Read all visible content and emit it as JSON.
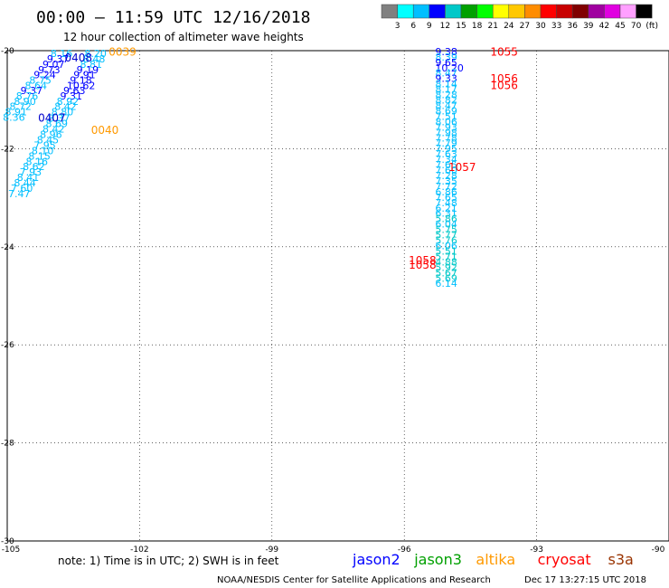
{
  "header": {
    "title": "00:00 – 11:59 UTC 12/16/2018",
    "subtitle": "12 hour collection of altimeter wave heights"
  },
  "legend": {
    "colors": [
      "#808080",
      "#00ffff",
      "#00bfff",
      "#0000ff",
      "#00c8c8",
      "#00a000",
      "#00ff00",
      "#ffff00",
      "#ffc800",
      "#ff8c00",
      "#ff0000",
      "#c80000",
      "#800000",
      "#a000a0",
      "#e000e0",
      "#ffa0ff",
      "#000000"
    ],
    "labels": [
      "3",
      "6",
      "9",
      "12",
      "15",
      "18",
      "21",
      "24",
      "27",
      "30",
      "33",
      "36",
      "39",
      "42",
      "45",
      "70",
      "(ft)"
    ]
  },
  "chart_data": {
    "type": "scatter",
    "xlabel": "",
    "ylabel": "",
    "xlim": [
      -105,
      -90
    ],
    "ylim": [
      -30,
      -20
    ],
    "x_ticks": [
      "-105",
      "-102",
      "-99",
      "-96",
      "-93",
      "-90"
    ],
    "y_ticks": [
      "-20",
      "-22",
      "-24",
      "-26",
      "-28",
      "-30"
    ],
    "grid": true,
    "series": [
      {
        "name": "jason2",
        "points": [
          {
            "x": -104.02,
            "y": -20.13,
            "v": "8.16",
            "c": "#00bfff"
          },
          {
            "x": -104.1,
            "y": -20.24,
            "v": "9.37",
            "c": "#0000ff"
          },
          {
            "x": -104.2,
            "y": -20.35,
            "v": "9.07",
            "c": "#0000ff"
          },
          {
            "x": -104.3,
            "y": -20.46,
            "v": "9.73",
            "c": "#0000ff"
          },
          {
            "x": -104.4,
            "y": -20.56,
            "v": "9.24",
            "c": "#0000ff"
          },
          {
            "x": -104.5,
            "y": -20.67,
            "v": "8.75",
            "c": "#00bfff"
          },
          {
            "x": -104.6,
            "y": -20.78,
            "v": "8.64",
            "c": "#00bfff"
          },
          {
            "x": -104.7,
            "y": -20.89,
            "v": "9.37",
            "c": "#0000ff"
          },
          {
            "x": -104.8,
            "y": -21.0,
            "v": "8.76",
            "c": "#00bfff"
          },
          {
            "x": -104.85,
            "y": -21.11,
            "v": "8.90",
            "c": "#00bfff"
          },
          {
            "x": -104.95,
            "y": -21.21,
            "v": "8.72",
            "c": "#00bfff"
          },
          {
            "x": -105.05,
            "y": -21.32,
            "v": "8.91",
            "c": "#00bfff"
          },
          {
            "x": -105.1,
            "y": -21.43,
            "v": "8.36",
            "c": "#00bfff"
          },
          {
            "x": -103.25,
            "y": -20.13,
            "v": "8.20",
            "c": "#00bfff"
          },
          {
            "x": -103.28,
            "y": -20.24,
            "v": "8.48",
            "c": "#00bfff"
          },
          {
            "x": -103.35,
            "y": -20.35,
            "v": "8.81",
            "c": "#00bfff"
          },
          {
            "x": -103.43,
            "y": -20.46,
            "v": "9.19",
            "c": "#0000ff"
          },
          {
            "x": -103.5,
            "y": -20.56,
            "v": "9.91",
            "c": "#0000ff"
          },
          {
            "x": -103.58,
            "y": -20.67,
            "v": "9.18",
            "c": "#0000ff"
          },
          {
            "x": -103.65,
            "y": -20.78,
            "v": "10.62",
            "c": "#0000ff"
          },
          {
            "x": -103.73,
            "y": -20.89,
            "v": "9.63",
            "c": "#0000ff"
          },
          {
            "x": -103.8,
            "y": -21.0,
            "v": "9.31",
            "c": "#0000ff"
          },
          {
            "x": -103.88,
            "y": -21.11,
            "v": "8.92",
            "c": "#00bfff"
          },
          {
            "x": -103.93,
            "y": -21.21,
            "v": "8.42",
            "c": "#00bfff"
          },
          {
            "x": -104.0,
            "y": -21.32,
            "v": "8.80",
            "c": "#00bfff"
          },
          {
            "x": -104.08,
            "y": -21.45,
            "v": "8.37",
            "c": "#00bfff"
          },
          {
            "x": -104.13,
            "y": -21.56,
            "v": "8.69",
            "c": "#00bfff"
          },
          {
            "x": -104.2,
            "y": -21.67,
            "v": "8.42",
            "c": "#00bfff"
          },
          {
            "x": -104.26,
            "y": -21.78,
            "v": "8.96",
            "c": "#00bfff"
          },
          {
            "x": -104.33,
            "y": -21.89,
            "v": "8.45",
            "c": "#00bfff"
          },
          {
            "x": -104.4,
            "y": -22.0,
            "v": "7.95",
            "c": "#00bfff"
          },
          {
            "x": -104.45,
            "y": -22.11,
            "v": "8.10",
            "c": "#00bfff"
          },
          {
            "x": -104.52,
            "y": -22.22,
            "v": "8.15",
            "c": "#00bfff"
          },
          {
            "x": -104.58,
            "y": -22.33,
            "v": "8.16",
            "c": "#00bfff"
          },
          {
            "x": -104.65,
            "y": -22.44,
            "v": "8.62",
            "c": "#00bfff"
          },
          {
            "x": -104.72,
            "y": -22.55,
            "v": "7.93",
            "c": "#00bfff"
          },
          {
            "x": -104.78,
            "y": -22.66,
            "v": "8.41",
            "c": "#00bfff"
          },
          {
            "x": -104.85,
            "y": -22.77,
            "v": "8.44",
            "c": "#00bfff"
          },
          {
            "x": -104.92,
            "y": -22.88,
            "v": "7.60",
            "c": "#00bfff"
          },
          {
            "x": -104.98,
            "y": -22.99,
            "v": "7.47",
            "c": "#00bfff"
          },
          {
            "x": -95.3,
            "y": -20.09,
            "v": "9.38",
            "c": "#0000ff"
          },
          {
            "x": -95.3,
            "y": -20.2,
            "v": "8.39",
            "c": "#00bfff"
          },
          {
            "x": -95.3,
            "y": -20.31,
            "v": "9.65",
            "c": "#0000ff"
          },
          {
            "x": -95.3,
            "y": -20.42,
            "v": "10.20",
            "c": "#0000ff"
          },
          {
            "x": -95.3,
            "y": -20.53,
            "v": "8.47",
            "c": "#00bfff"
          },
          {
            "x": -95.3,
            "y": -20.64,
            "v": "9.33",
            "c": "#0000ff"
          },
          {
            "x": -95.3,
            "y": -20.75,
            "v": "8.14",
            "c": "#00bfff"
          },
          {
            "x": -95.3,
            "y": -20.86,
            "v": "8.17",
            "c": "#00bfff"
          },
          {
            "x": -95.3,
            "y": -20.97,
            "v": "8.28",
            "c": "#00bfff"
          },
          {
            "x": -95.3,
            "y": -21.08,
            "v": "8.82",
            "c": "#00bfff"
          },
          {
            "x": -95.3,
            "y": -21.19,
            "v": "8.47",
            "c": "#00bfff"
          },
          {
            "x": -95.3,
            "y": -21.3,
            "v": "8.69",
            "c": "#00bfff"
          },
          {
            "x": -95.3,
            "y": -21.41,
            "v": "7.51",
            "c": "#00bfff"
          },
          {
            "x": -95.3,
            "y": -21.52,
            "v": "8.06",
            "c": "#00bfff"
          },
          {
            "x": -95.3,
            "y": -21.63,
            "v": "7.93",
            "c": "#00bfff"
          },
          {
            "x": -95.3,
            "y": -21.74,
            "v": "7.98",
            "c": "#00bfff"
          },
          {
            "x": -95.3,
            "y": -21.85,
            "v": "7.78",
            "c": "#00bfff"
          },
          {
            "x": -95.3,
            "y": -21.96,
            "v": "7.79",
            "c": "#00bfff"
          },
          {
            "x": -95.3,
            "y": -22.07,
            "v": "7.95",
            "c": "#00bfff"
          },
          {
            "x": -95.3,
            "y": -22.18,
            "v": "7.63",
            "c": "#00bfff"
          },
          {
            "x": -95.3,
            "y": -22.29,
            "v": "7.34",
            "c": "#00bfff"
          },
          {
            "x": -95.3,
            "y": -22.4,
            "v": "7.65",
            "c": "#00bfff"
          },
          {
            "x": -95.3,
            "y": -22.51,
            "v": "7.60",
            "c": "#00bfff"
          },
          {
            "x": -95.3,
            "y": -22.62,
            "v": "7.28",
            "c": "#00bfff"
          },
          {
            "x": -95.3,
            "y": -22.73,
            "v": "7.35",
            "c": "#00bfff"
          },
          {
            "x": -95.3,
            "y": -22.84,
            "v": "7.72",
            "c": "#00bfff"
          },
          {
            "x": -95.3,
            "y": -22.95,
            "v": "6.86",
            "c": "#00bfff"
          },
          {
            "x": -95.3,
            "y": -23.06,
            "v": "7.65",
            "c": "#00bfff"
          },
          {
            "x": -95.3,
            "y": -23.17,
            "v": "7.48",
            "c": "#00bfff"
          },
          {
            "x": -95.3,
            "y": -23.28,
            "v": "6.21",
            "c": "#00bfff"
          },
          {
            "x": -95.3,
            "y": -23.39,
            "v": "6.31",
            "c": "#00bfff"
          },
          {
            "x": -95.3,
            "y": -23.5,
            "v": "5.86",
            "c": "#00c8c8"
          },
          {
            "x": -95.3,
            "y": -23.61,
            "v": "6.04",
            "c": "#00bfff"
          },
          {
            "x": -95.3,
            "y": -23.72,
            "v": "5.75",
            "c": "#00c8c8"
          },
          {
            "x": -95.3,
            "y": -23.83,
            "v": "5.77",
            "c": "#00c8c8"
          },
          {
            "x": -95.3,
            "y": -23.94,
            "v": "5.76",
            "c": "#00c8c8"
          },
          {
            "x": -95.3,
            "y": -24.05,
            "v": "6.06",
            "c": "#00bfff"
          },
          {
            "x": -95.3,
            "y": -24.16,
            "v": "5.51",
            "c": "#00c8c8"
          },
          {
            "x": -95.3,
            "y": -24.27,
            "v": "5.71",
            "c": "#00c8c8"
          },
          {
            "x": -95.3,
            "y": -24.38,
            "v": "4.88",
            "c": "#00c8c8"
          },
          {
            "x": -95.3,
            "y": -24.49,
            "v": "5.92",
            "c": "#00c8c8"
          },
          {
            "x": -95.3,
            "y": -24.6,
            "v": "5.67",
            "c": "#00c8c8"
          },
          {
            "x": -95.3,
            "y": -24.71,
            "v": "5.69",
            "c": "#00c8c8"
          },
          {
            "x": -95.3,
            "y": -24.82,
            "v": "6.14",
            "c": "#00bfff"
          }
        ]
      }
    ]
  },
  "time_labels": [
    {
      "x": -102.7,
      "y": -20.1,
      "v": "0039",
      "c": "#ff9900"
    },
    {
      "x": -103.7,
      "y": -20.22,
      "v": "0408",
      "c": "#0000cc"
    },
    {
      "x": -104.3,
      "y": -21.45,
      "v": "0407",
      "c": "#0000cc"
    },
    {
      "x": -103.1,
      "y": -21.7,
      "v": "0040",
      "c": "#ff9900"
    },
    {
      "x": -94.05,
      "y": -20.1,
      "v": "1055",
      "c": "#ff0000"
    },
    {
      "x": -94.05,
      "y": -20.65,
      "v": "1056",
      "c": "#ff0000"
    },
    {
      "x": -94.05,
      "y": -20.78,
      "v": "1056",
      "c": "#ff0000"
    },
    {
      "x": -95.0,
      "y": -22.45,
      "v": "1057",
      "c": "#ff0000"
    },
    {
      "x": -95.9,
      "y": -24.35,
      "v": "1058",
      "c": "#ff0000"
    },
    {
      "x": -95.9,
      "y": -24.45,
      "v": "1058",
      "c": "#ff0000"
    }
  ],
  "notes": {
    "note": "note: 1) Time is in UTC; 2) SWH is in feet",
    "credit": "NOAA/NESDIS Center for Satellite Applications and Research",
    "timestamp": "Dec 17 13:27:15 UTC 2018"
  },
  "satellites": [
    {
      "name": "jason2",
      "color": "#0000ff"
    },
    {
      "name": "jason3",
      "color": "#00a000"
    },
    {
      "name": "altika",
      "color": "#ff9900"
    },
    {
      "name": "cryosat",
      "color": "#ff0000"
    },
    {
      "name": "s3a",
      "color": "#993300"
    }
  ]
}
